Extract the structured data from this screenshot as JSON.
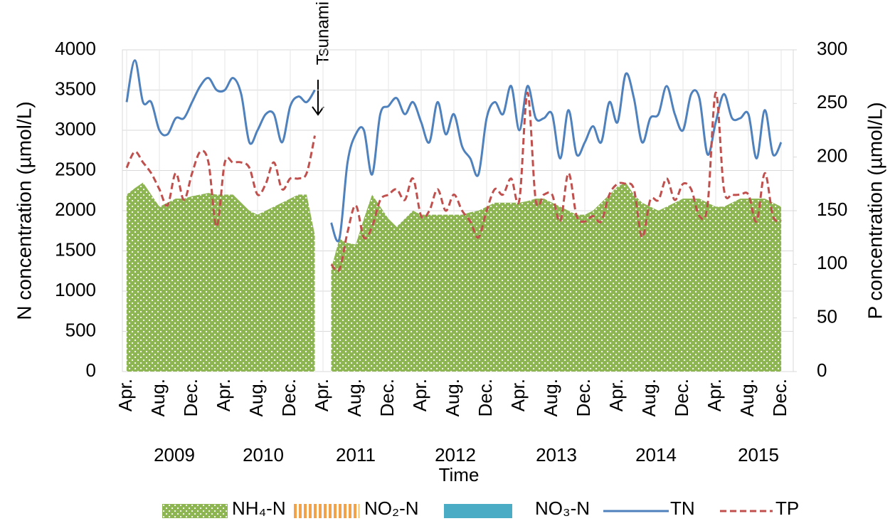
{
  "chart_data": {
    "type": "area-line",
    "xlabel": "Time",
    "ylabel": "N concentration (µmol/L)",
    "y2label": "P concentration (µmol/L)",
    "annotation": "Tsunami",
    "x_groups": [
      "2009",
      "2010",
      "2011",
      "2012",
      "2013",
      "2014",
      "2015"
    ],
    "categories": [
      "Apr.",
      null,
      null,
      null,
      "Aug.",
      null,
      null,
      null,
      "Dec.",
      null,
      null,
      null,
      "Apr.",
      null,
      null,
      null,
      "Aug.",
      null,
      null,
      null,
      "Dec.",
      null,
      null,
      null,
      "Apr.",
      null,
      null,
      null,
      "Aug.",
      null,
      null,
      null,
      "Dec.",
      null,
      null,
      null,
      "Apr.",
      null,
      null,
      null,
      "Aug.",
      null,
      null,
      null,
      "Dec.",
      null,
      null,
      null,
      "Apr.",
      null,
      null,
      null,
      "Aug.",
      null,
      null,
      null,
      "Dec.",
      null,
      null,
      null,
      "Apr.",
      null,
      null,
      null,
      "Aug.",
      null,
      null,
      null,
      "Dec.",
      null,
      null,
      null,
      "Apr.",
      null,
      null,
      null,
      "Aug.",
      null,
      null,
      null,
      "Dec."
    ],
    "ylim": [
      0,
      4000
    ],
    "yticks": [
      0,
      500,
      1000,
      1500,
      2000,
      2500,
      3000,
      3500,
      4000
    ],
    "y2lim": [
      0,
      300
    ],
    "y2ticks": [
      0,
      50,
      100,
      150,
      200,
      250,
      300
    ],
    "grid": true,
    "legend": "bottom",
    "series": [
      {
        "name": "NH₄-N",
        "color": "#8db552",
        "kind": "area",
        "values": [
          2200,
          2280,
          2350,
          2200,
          2050,
          2100,
          2150,
          2150,
          2180,
          2200,
          2220,
          2200,
          2200,
          2200,
          2100,
          2000,
          1950,
          2000,
          2050,
          2100,
          2150,
          2200,
          2200,
          1700,
          null,
          1280,
          1650,
          1600,
          1580,
          1900,
          2200,
          2050,
          1900,
          1800,
          1900,
          2000,
          1950,
          1950,
          1950,
          1950,
          1950,
          1950,
          1980,
          2000,
          2050,
          2100,
          2100,
          2100,
          2100,
          2120,
          2150,
          2150,
          2100,
          2050,
          2000,
          1950,
          1950,
          2000,
          2100,
          2200,
          2300,
          2350,
          2200,
          2100,
          2050,
          2000,
          2050,
          2100,
          2150,
          2150,
          2150,
          2100,
          2050,
          2050,
          2100,
          2150,
          2150,
          2150,
          2150,
          2100,
          2050
        ]
      },
      {
        "name": "NO₂-N",
        "color": "#f4a24a",
        "kind": "stripes"
      },
      {
        "name": "NO₃-N",
        "color": "#4bacc6",
        "kind": "swatch"
      },
      {
        "name": "TN",
        "color": "#4f81bd",
        "kind": "line",
        "values": [
          3350,
          3870,
          3350,
          3350,
          3000,
          2950,
          3150,
          3150,
          3350,
          3550,
          3650,
          3500,
          3500,
          3650,
          3450,
          2850,
          3000,
          3200,
          3200,
          2850,
          3300,
          3420,
          3350,
          3500,
          null,
          1850,
          1650,
          2600,
          2950,
          3000,
          2450,
          3200,
          3300,
          3400,
          3200,
          3350,
          3100,
          2850,
          3350,
          2950,
          3200,
          2800,
          2650,
          2450,
          3150,
          3350,
          3200,
          3550,
          3000,
          3550,
          3150,
          3150,
          3200,
          2650,
          3250,
          2700,
          2850,
          3050,
          2850,
          3350,
          3100,
          3700,
          3400,
          2850,
          3150,
          3200,
          3550,
          3200,
          3000,
          3450,
          3400,
          2700,
          3100,
          3450,
          3150,
          3150,
          3200,
          2650,
          3250,
          2700,
          2850
        ]
      },
      {
        "name": "TP",
        "color": "#c0504d",
        "kind": "dashed",
        "axis": "y2",
        "values": [
          190,
          205,
          195,
          185,
          170,
          155,
          185,
          160,
          185,
          205,
          195,
          135,
          195,
          195,
          195,
          190,
          165,
          175,
          195,
          170,
          180,
          180,
          185,
          220,
          null,
          100,
          95,
          130,
          155,
          125,
          135,
          160,
          165,
          170,
          160,
          180,
          145,
          150,
          170,
          150,
          165,
          150,
          140,
          125,
          150,
          170,
          165,
          180,
          160,
          260,
          160,
          165,
          165,
          140,
          185,
          145,
          140,
          145,
          140,
          165,
          175,
          175,
          170,
          125,
          160,
          160,
          180,
          160,
          175,
          170,
          145,
          155,
          260,
          170,
          165,
          165,
          165,
          140,
          185,
          145,
          140
        ]
      }
    ]
  }
}
